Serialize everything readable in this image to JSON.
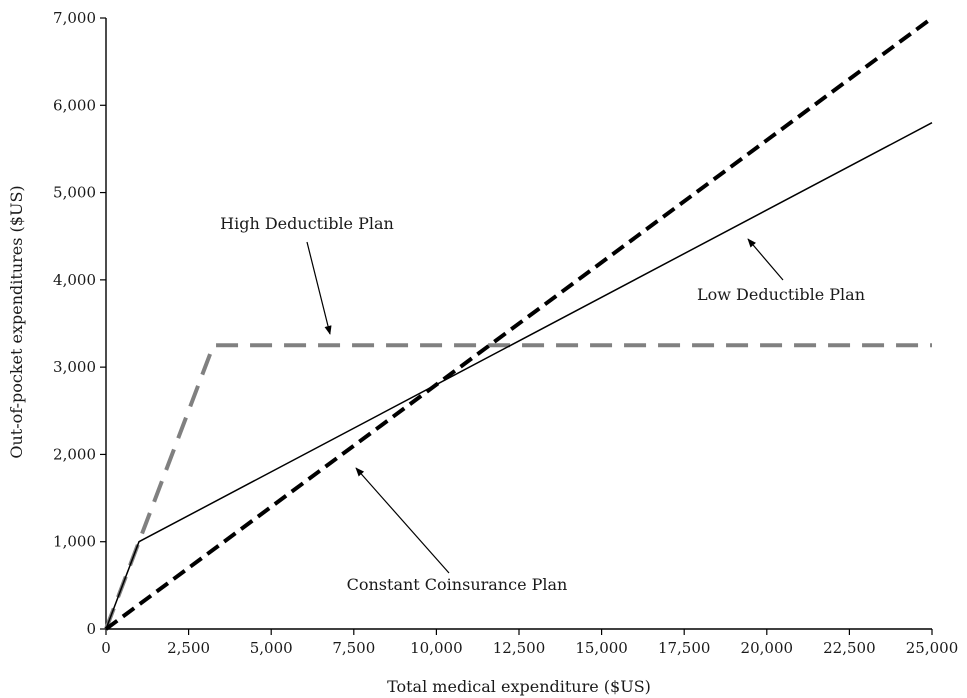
{
  "chart_data": {
    "type": "line",
    "title": "",
    "xlabel": "Total medical expenditure ($US)",
    "ylabel": "Out-of-pocket expenditures ($US)",
    "xlim": [
      0,
      25000
    ],
    "ylim": [
      0,
      7000
    ],
    "x_ticks": [
      0,
      2500,
      5000,
      7500,
      10000,
      12500,
      15000,
      17500,
      20000,
      22500,
      25000
    ],
    "x_tick_labels": [
      "0",
      "2,500",
      "5,000",
      "7,500",
      "10,000",
      "12,500",
      "15,000",
      "17,500",
      "20,000",
      "22,500",
      "25,000"
    ],
    "y_ticks": [
      0,
      1000,
      2000,
      3000,
      4000,
      5000,
      6000,
      7000
    ],
    "y_tick_labels": [
      "0",
      "1,000",
      "2,000",
      "3,000",
      "4,000",
      "5,000",
      "6,000",
      "7,000"
    ],
    "grid": false,
    "series": [
      {
        "name": "High Deductible Plan",
        "line_style": "dashed",
        "color": "#808080",
        "x": [
          0,
          1000,
          3250,
          25000
        ],
        "y": [
          0,
          1000,
          3250,
          3250
        ]
      },
      {
        "name": "Low Deductible Plan",
        "line_style": "solid",
        "color": "#000000",
        "x": [
          0,
          1000,
          25000
        ],
        "y": [
          0,
          1000,
          5800
        ]
      },
      {
        "name": "Constant Coinsurance Plan",
        "line_style": "dashed",
        "color": "#000000",
        "x": [
          0,
          25000
        ],
        "y": [
          0,
          7000
        ]
      }
    ],
    "annotations": [
      {
        "label": "High Deductible Plan",
        "series": 0
      },
      {
        "label": "Low Deductible Plan",
        "series": 1
      },
      {
        "label": "Constant Coinsurance Plan",
        "series": 2
      }
    ]
  }
}
